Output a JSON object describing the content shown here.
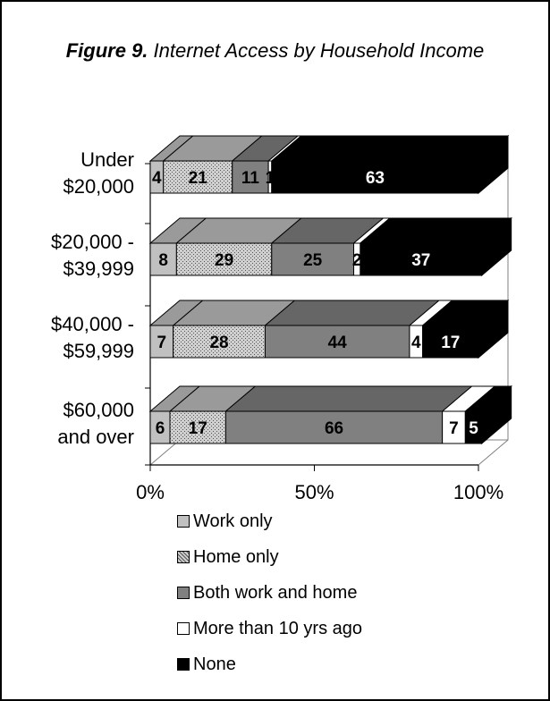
{
  "chart_data": {
    "type": "bar",
    "orientation": "horizontal",
    "stacked": true,
    "three_d": true,
    "title_prefix": "Figure 9.",
    "title": "Internet Access by Household Income",
    "categories": [
      [
        "Under",
        "$20,000"
      ],
      [
        "$20,000 -",
        "$39,999"
      ],
      [
        "$40,000 -",
        "$59,999"
      ],
      [
        "$60,000",
        "and over"
      ]
    ],
    "series": [
      {
        "name": "Work only",
        "values": [
          4,
          8,
          7,
          6
        ],
        "color": "#c0c0c0"
      },
      {
        "name": "Home only",
        "values": [
          21,
          29,
          28,
          17
        ],
        "color": "#a0a0a0"
      },
      {
        "name": "Both work and home",
        "values": [
          11,
          25,
          44,
          66
        ],
        "color": "#808080"
      },
      {
        "name": "More than 10 yrs ago",
        "values": [
          1,
          2,
          4,
          7
        ],
        "color": "#ffffff"
      },
      {
        "name": "None",
        "values": [
          63,
          37,
          17,
          5
        ],
        "color": "#000000"
      }
    ],
    "x_ticks": [
      "0%",
      "50%",
      "100%"
    ],
    "xlim": [
      0,
      100
    ],
    "legend_position": "bottom"
  }
}
